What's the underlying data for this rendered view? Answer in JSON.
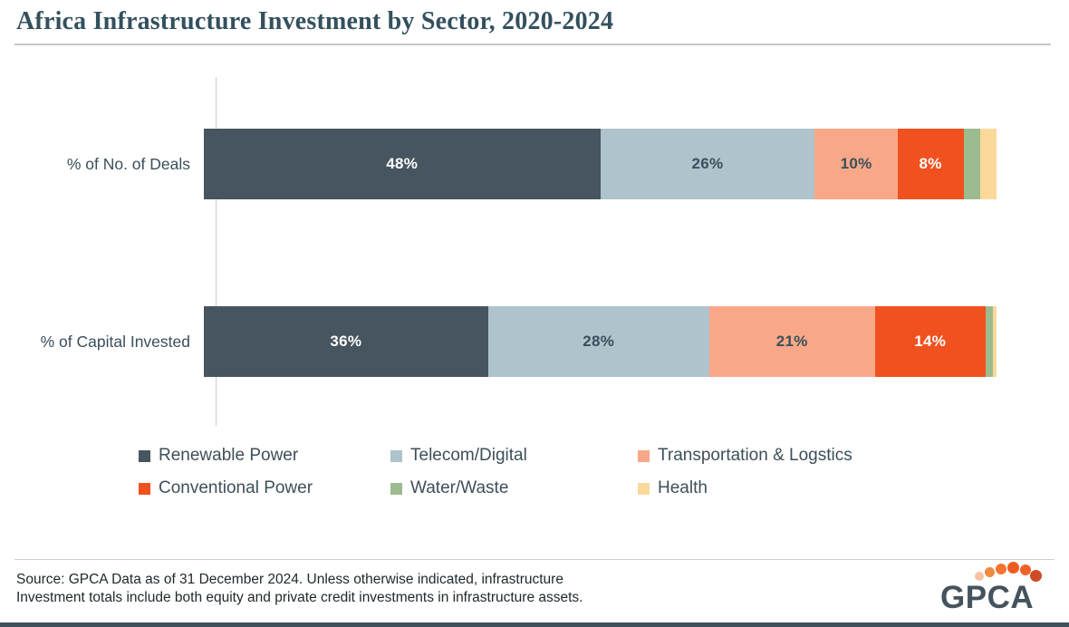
{
  "title": "Africa Infrastructure Investment by Sector, 2020-2024",
  "chart_data": {
    "type": "bar",
    "orientation": "horizontal_stacked",
    "title": "Africa Infrastructure Investment by Sector, 2020-2024",
    "categories": [
      "% of No. of Deals",
      "% of Capital Invested"
    ],
    "series": [
      {
        "name": "Renewable Power",
        "color": "#46555f",
        "label_color": "#ffffff",
        "values": [
          48,
          36
        ],
        "labels": [
          "48%",
          "36%"
        ]
      },
      {
        "name": "Telecom/Digital",
        "color": "#aec3cc",
        "label_color": "#3a4f5b",
        "values": [
          26,
          28
        ],
        "labels": [
          "26%",
          "28%"
        ]
      },
      {
        "name": "Transportation & Logstics",
        "color": "#f8a888",
        "label_color": "#3a4f5b",
        "values": [
          10,
          21
        ],
        "labels": [
          "10%",
          "21%"
        ]
      },
      {
        "name": "Conventional Power",
        "color": "#f1511f",
        "label_color": "#ffffff",
        "values": [
          8,
          14
        ],
        "labels": [
          "8%",
          "14%"
        ]
      },
      {
        "name": "Water/Waste",
        "color": "#9cbb8f",
        "label_color": "#3a4f5b",
        "values": [
          2,
          1
        ],
        "labels": [
          "",
          ""
        ]
      },
      {
        "name": "Health",
        "color": "#fbd99b",
        "label_color": "#3a4f5b",
        "values": [
          2,
          0.4
        ],
        "labels": [
          "",
          ""
        ]
      }
    ],
    "grid": false,
    "legend_position": "bottom",
    "xlim": [
      0,
      100
    ]
  },
  "footer": {
    "source_line1": "Source: GPCA Data as of 31 December 2024. Unless otherwise indicated, infrastructure",
    "source_line2": "Investment totals include both equity and private credit investments in infrastructure assets."
  },
  "logo": {
    "text": "GPCA",
    "text_color": "#44535d",
    "dot_colors": [
      "#f6c3a4",
      "#ef8a3e",
      "#f2742f",
      "#f05a22",
      "#ee6128",
      "#cd4b27"
    ]
  },
  "colors": {
    "title_text": "#33505e",
    "bottom_strip": "#3f525c",
    "axis_line": "#c9ced3",
    "divider": "#cfcfcf"
  }
}
